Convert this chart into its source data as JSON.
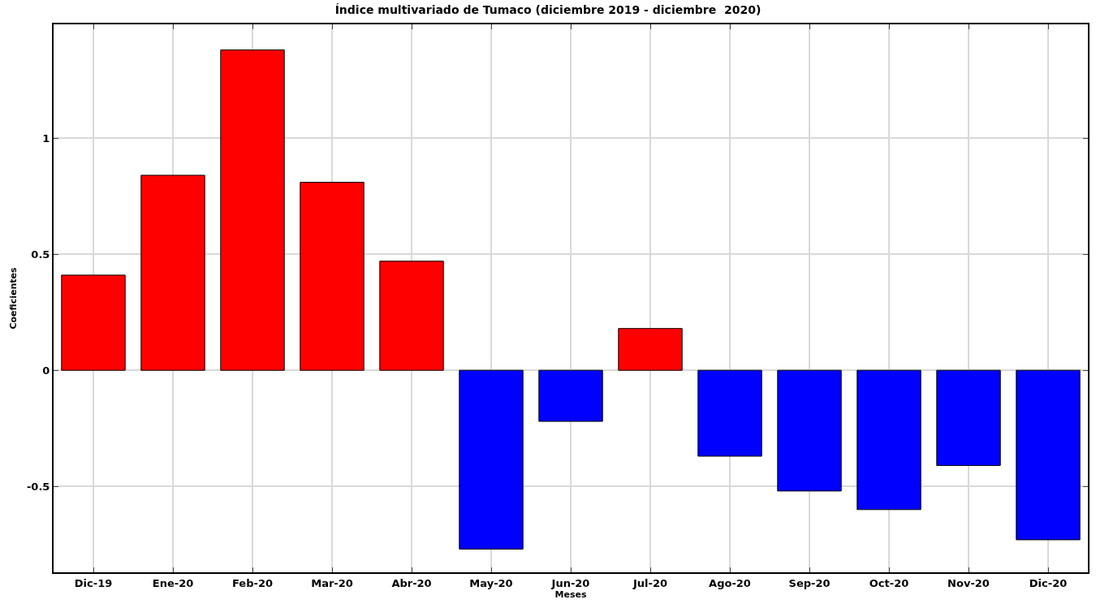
{
  "chart_data": {
    "type": "bar",
    "title": "Índice multivariado de Tumaco (diciembre 2019 - diciembre  2020)",
    "xlabel": "Meses",
    "ylabel": "Coeficientes",
    "categories": [
      "Dic-19",
      "Ene-20",
      "Feb-20",
      "Mar-20",
      "Abr-20",
      "May-20",
      "Jun-20",
      "Jul-20",
      "Ago-20",
      "Sep-20",
      "Oct-20",
      "Nov-20",
      "Dic-20"
    ],
    "values": [
      0.41,
      0.84,
      1.38,
      0.81,
      0.47,
      -0.77,
      -0.22,
      0.18,
      -0.37,
      -0.52,
      -0.6,
      -0.41,
      -0.73
    ],
    "colors": [
      "#ff0000",
      "#ff0000",
      "#ff0000",
      "#ff0000",
      "#ff0000",
      "#0000ff",
      "#0000ff",
      "#ff0000",
      "#0000ff",
      "#0000ff",
      "#0000ff",
      "#0000ff",
      "#0000ff"
    ],
    "ylim": [
      -0.87,
      1.49
    ],
    "yticks": [
      -0.5,
      0,
      0.5,
      1
    ],
    "grid": true
  }
}
